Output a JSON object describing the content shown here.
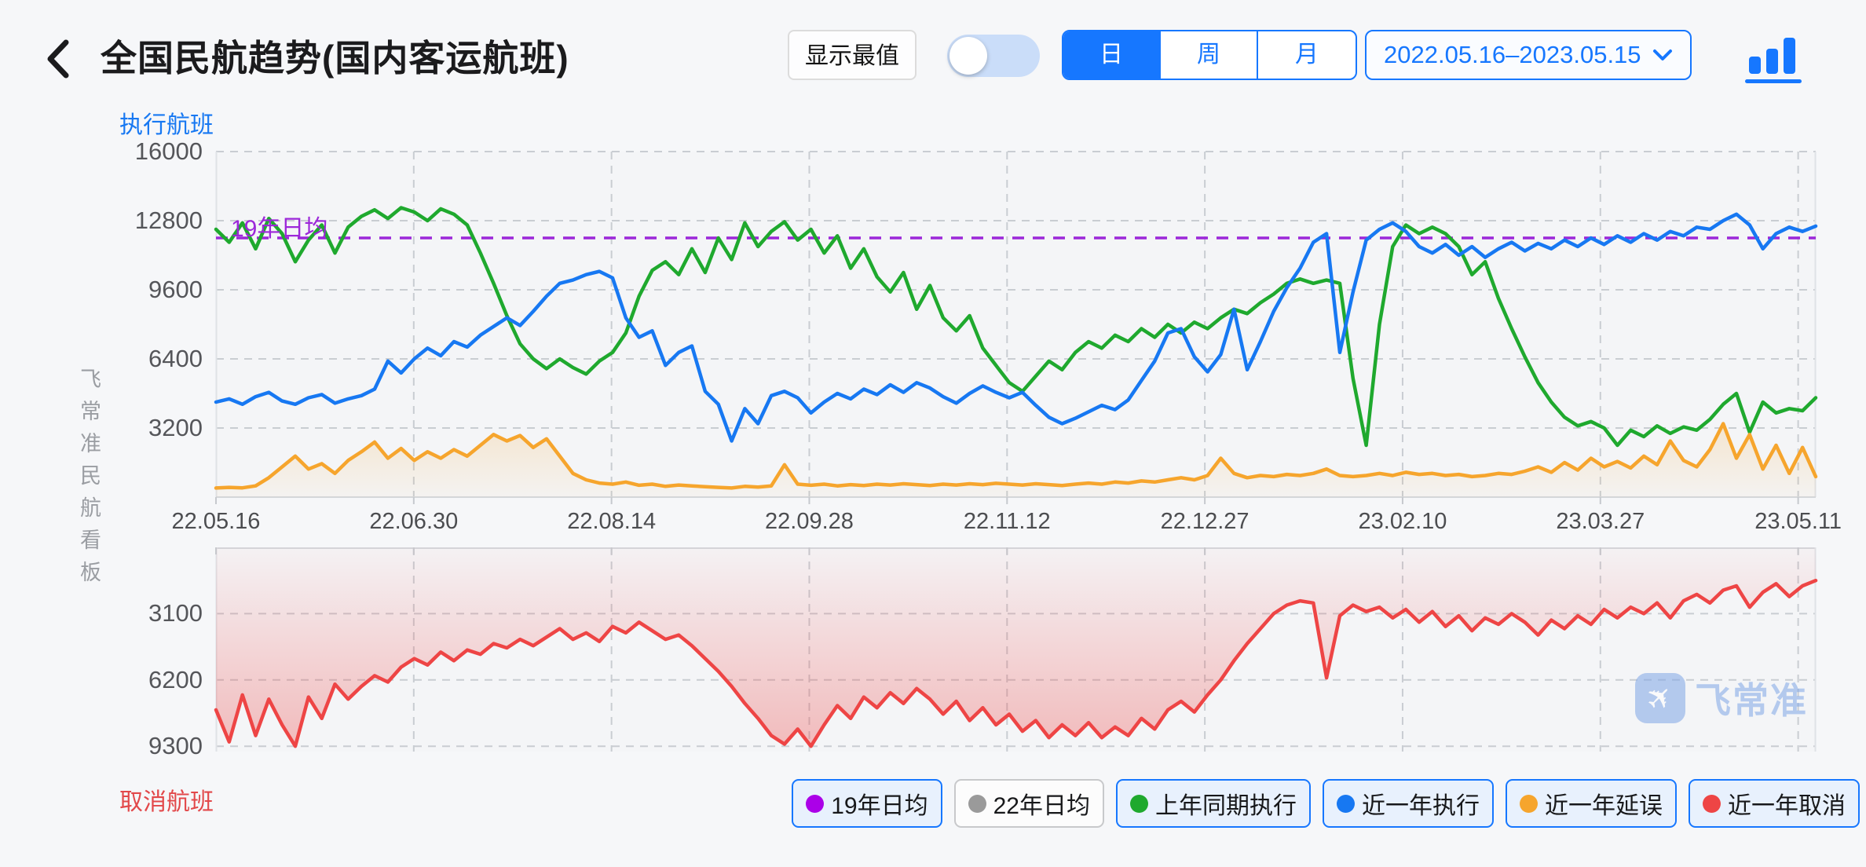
{
  "header": {
    "title": "全国民航趋势(国内客运航班)",
    "max_toggle_label": "显示最值",
    "toggle_state": "off",
    "period_tabs": [
      {
        "label": "日",
        "active": true
      },
      {
        "label": "周",
        "active": false
      },
      {
        "label": "月",
        "active": false
      }
    ],
    "date_range": "2022.05.16–2023.05.15"
  },
  "side_watermark": "飞常准民航看板",
  "watermark_logo_text": "飞常准",
  "top_chart": {
    "axis_title": "执行航班",
    "y_ticks": [
      16000,
      12800,
      9600,
      6400,
      3200
    ],
    "y_max": 16000
  },
  "bottom_chart": {
    "axis_title": "取消航班",
    "y_ticks": [
      3100,
      6200,
      9300
    ],
    "y_max": 9550,
    "inverted": true
  },
  "legend": [
    {
      "label": "19年日均",
      "color": "#ab00e8",
      "active": true
    },
    {
      "label": "22年日均",
      "color": "#9a9a9a",
      "active": false
    },
    {
      "label": "上年同期执行",
      "color": "#1fa92e",
      "active": true
    },
    {
      "label": "近一年执行",
      "color": "#1778f2",
      "active": true
    },
    {
      "label": "近一年延误",
      "color": "#f6a52d",
      "active": true
    },
    {
      "label": "近一年取消",
      "color": "#ee4545",
      "active": true
    }
  ],
  "colors": {
    "accent": "#1677ff",
    "grid": "#c9cdd2",
    "border": "#dfe2e6",
    "ref_purple": "#9c27d9"
  },
  "chart_data": {
    "type": "line",
    "x_axis": {
      "tick_labels": [
        "22.05.16",
        "22.06.30",
        "22.08.14",
        "22.09.28",
        "22.11.12",
        "22.12.27",
        "23.02.10",
        "23.03.27",
        "23.05.11"
      ],
      "tick_days": [
        0,
        45,
        90,
        135,
        180,
        225,
        270,
        315,
        360
      ],
      "total_days": 364,
      "point_step_days": 3
    },
    "ref_line": {
      "label": "19年日均",
      "value": 12000,
      "color": "#9c27d9"
    },
    "top_series": [
      {
        "name": "上年同期执行",
        "color": "#1fa92e",
        "area": false,
        "values": [
          12400,
          11800,
          12700,
          11500,
          12900,
          12200,
          10900,
          11900,
          12600,
          11300,
          12500,
          13000,
          13300,
          12900,
          13400,
          13200,
          12800,
          13350,
          13100,
          12600,
          11300,
          9900,
          8400,
          7100,
          6400,
          5950,
          6400,
          6000,
          5700,
          6300,
          6700,
          7600,
          9300,
          10500,
          10900,
          10300,
          11500,
          10400,
          12000,
          11000,
          12700,
          11600,
          12300,
          12750,
          11900,
          12400,
          11300,
          12100,
          10600,
          11500,
          10200,
          9500,
          10400,
          8700,
          9800,
          8300,
          7700,
          8400,
          6900,
          6100,
          5300,
          4900,
          5600,
          6300,
          5900,
          6700,
          7200,
          6900,
          7500,
          7200,
          7800,
          7400,
          8000,
          7600,
          8100,
          7800,
          8300,
          8700,
          8500,
          9000,
          9400,
          9900,
          10100,
          9900,
          10050,
          9900,
          5500,
          2400,
          8000,
          11600,
          12600,
          12200,
          12500,
          12200,
          11600,
          10300,
          10900,
          9200,
          7800,
          6500,
          5300,
          4400,
          3700,
          3300,
          3500,
          3200,
          2400,
          3100,
          2800,
          3300,
          2950,
          3250,
          3100,
          3600,
          4300,
          4800,
          3000,
          4400,
          3900,
          4100,
          4000,
          4600
        ]
      },
      {
        "name": "近一年执行",
        "color": "#1778f2",
        "area": false,
        "values": [
          4400,
          4550,
          4300,
          4650,
          4850,
          4450,
          4300,
          4600,
          4750,
          4350,
          4550,
          4700,
          5000,
          6300,
          5750,
          6400,
          6900,
          6550,
          7200,
          6950,
          7500,
          7900,
          8300,
          7950,
          8600,
          9300,
          9900,
          10050,
          10300,
          10450,
          10150,
          8300,
          7400,
          7700,
          6100,
          6700,
          7000,
          4900,
          4300,
          2600,
          4100,
          3400,
          4700,
          4900,
          4600,
          3900,
          4400,
          4800,
          4550,
          5000,
          4750,
          5200,
          4850,
          5300,
          5050,
          4650,
          4350,
          4800,
          5150,
          4850,
          4600,
          4850,
          4250,
          3700,
          3400,
          3650,
          3950,
          4250,
          4050,
          4500,
          5400,
          6300,
          7600,
          7800,
          6500,
          5800,
          6600,
          8700,
          5900,
          7200,
          8600,
          9700,
          10600,
          11800,
          12200,
          6700,
          9500,
          11900,
          12400,
          12700,
          12300,
          11600,
          11300,
          11700,
          11200,
          11600,
          11100,
          11500,
          11800,
          11400,
          11750,
          11500,
          11900,
          11600,
          12000,
          11700,
          12100,
          11800,
          12200,
          11900,
          12300,
          12100,
          12500,
          12400,
          12800,
          13100,
          12600,
          11500,
          12200,
          12500,
          12300,
          12550
        ]
      },
      {
        "name": "近一年延误",
        "color": "#f6a52d",
        "area": true,
        "values": [
          420,
          450,
          430,
          520,
          900,
          1400,
          1900,
          1300,
          1550,
          1100,
          1700,
          2100,
          2550,
          1800,
          2250,
          1700,
          2100,
          1800,
          2200,
          1900,
          2400,
          2900,
          2600,
          2850,
          2300,
          2700,
          1900,
          1100,
          800,
          650,
          600,
          700,
          550,
          600,
          500,
          560,
          520,
          480,
          450,
          420,
          500,
          460,
          520,
          1500,
          600,
          550,
          600,
          520,
          580,
          540,
          600,
          560,
          620,
          580,
          540,
          600,
          560,
          620,
          580,
          640,
          600,
          560,
          620,
          580,
          540,
          600,
          650,
          600,
          700,
          650,
          750,
          700,
          800,
          900,
          800,
          1000,
          1800,
          1100,
          900,
          1000,
          950,
          1050,
          1000,
          1100,
          1300,
          1000,
          950,
          1000,
          1100,
          1000,
          1150,
          1050,
          1100,
          1000,
          1050,
          950,
          1000,
          1100,
          1050,
          1200,
          1400,
          1150,
          1600,
          1250,
          1800,
          1400,
          1650,
          1350,
          1900,
          1500,
          2600,
          1700,
          1400,
          2200,
          3400,
          1800,
          2900,
          1300,
          2400,
          1100,
          2300,
          950
        ]
      }
    ],
    "bottom_series": [
      {
        "name": "近一年取消",
        "color": "#ee4545",
        "area": true,
        "values": [
          7600,
          9100,
          6900,
          8800,
          7100,
          8300,
          9300,
          7000,
          8000,
          6400,
          7100,
          6500,
          6000,
          6300,
          5600,
          5200,
          5500,
          4900,
          5300,
          4800,
          5000,
          4500,
          4700,
          4300,
          4600,
          4200,
          3800,
          4300,
          4000,
          4400,
          3700,
          4000,
          3500,
          3900,
          4300,
          4100,
          4600,
          5200,
          5800,
          6500,
          7300,
          8000,
          8800,
          9200,
          8500,
          9300,
          8300,
          7400,
          8000,
          7000,
          7500,
          6800,
          7300,
          6600,
          7100,
          7800,
          7200,
          8100,
          7500,
          8300,
          7800,
          8600,
          8100,
          8900,
          8300,
          8800,
          8200,
          8900,
          8400,
          8800,
          8000,
          8500,
          7600,
          7200,
          7700,
          6900,
          6200,
          5300,
          4500,
          3800,
          3100,
          2700,
          2500,
          2600,
          6100,
          3200,
          2700,
          3000,
          2800,
          3300,
          2900,
          3500,
          3000,
          3700,
          3200,
          3900,
          3300,
          3600,
          3100,
          3500,
          4100,
          3400,
          3800,
          3200,
          3600,
          2900,
          3300,
          2800,
          3100,
          2600,
          3300,
          2500,
          2200,
          2600,
          2000,
          1800,
          2800,
          2100,
          1700,
          2300,
          1800,
          1550
        ]
      }
    ]
  }
}
